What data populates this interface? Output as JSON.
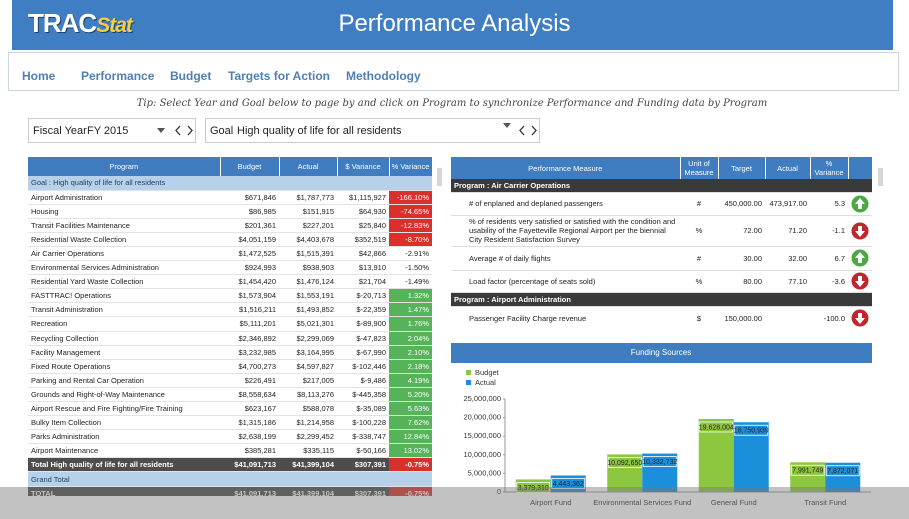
{
  "logo": {
    "text1": "TRAC",
    "text2": "Stat"
  },
  "header": {
    "title": "Performance Analysis"
  },
  "nav": [
    "Home",
    "Performance",
    "Budget",
    "Targets for Action",
    "Methodology"
  ],
  "tip": "Tip: Select Year and Goal below to page by and click on Program to synchronize Performance and Funding data by Program",
  "filters": {
    "year_label": "Fiscal Year",
    "year_value": "FY 2015",
    "goal_label": "Goal",
    "goal_value": "High quality of life for all residents"
  },
  "program_table": {
    "headers": [
      "Program",
      "Budget",
      "Actual",
      "$ Variance",
      "% Variance"
    ],
    "group": "Goal : High quality of life for all residents",
    "rows": [
      {
        "cells": [
          "Airport Administration",
          "$671,846",
          "$1,787,773",
          "$1,115,927",
          "-166.10%"
        ],
        "flag": "red"
      },
      {
        "cells": [
          "Housing",
          "$86,985",
          "$151,915",
          "$64,930",
          "-74.65%"
        ],
        "flag": "red"
      },
      {
        "cells": [
          "Transit Facilities Maintenance",
          "$201,361",
          "$227,201",
          "$25,840",
          "-12.83%"
        ],
        "flag": "red"
      },
      {
        "cells": [
          "Residential Waste Collection",
          "$4,051,159",
          "$4,403,678",
          "$352,519",
          "-8.70%"
        ],
        "flag": "red"
      },
      {
        "cells": [
          "Air Carrier Operations",
          "$1,472,525",
          "$1,515,391",
          "$42,866",
          "-2.91%"
        ]
      },
      {
        "cells": [
          "Environmental Services Administration",
          "$924,993",
          "$938,903",
          "$13,910",
          "-1.50%"
        ]
      },
      {
        "cells": [
          "Residential Yard Waste Collection",
          "$1,454,420",
          "$1,476,124",
          "$21,704",
          "-1.49%"
        ]
      },
      {
        "cells": [
          "FASTTRAC! Operations",
          "$1,573,904",
          "$1,553,191",
          "$-20,713",
          "1.32%"
        ],
        "flag": "green"
      },
      {
        "cells": [
          "Transit Administration",
          "$1,516,211",
          "$1,493,852",
          "$-22,359",
          "1.47%"
        ],
        "flag": "green"
      },
      {
        "cells": [
          "Recreation",
          "$5,111,201",
          "$5,021,301",
          "$-89,900",
          "1.76%"
        ],
        "flag": "green"
      },
      {
        "cells": [
          "Recycling Collection",
          "$2,346,892",
          "$2,299,069",
          "$-47,823",
          "2.04%"
        ],
        "flag": "green"
      },
      {
        "cells": [
          "Facility Management",
          "$3,232,985",
          "$3,164,995",
          "$-67,990",
          "2.10%"
        ],
        "flag": "green"
      },
      {
        "cells": [
          "Fixed Route Operations",
          "$4,700,273",
          "$4,597,827",
          "$-102,446",
          "2.18%"
        ],
        "flag": "green"
      },
      {
        "cells": [
          "Parking and Rental Car Operation",
          "$226,491",
          "$217,005",
          "$-9,486",
          "4.19%"
        ],
        "flag": "green"
      },
      {
        "cells": [
          "Grounds and Right-of-Way Maintenance",
          "$8,558,634",
          "$8,113,276",
          "$-445,358",
          "5.20%"
        ],
        "flag": "green"
      },
      {
        "cells": [
          "Airport Rescue and Fire Fighting/Fire Training",
          "$623,167",
          "$588,078",
          "$-35,089",
          "5.63%"
        ],
        "flag": "green"
      },
      {
        "cells": [
          "Bulky Item Collection",
          "$1,315,186",
          "$1,214,958",
          "$-100,228",
          "7.62%"
        ],
        "flag": "green"
      },
      {
        "cells": [
          "Parks Administration",
          "$2,638,199",
          "$2,299,452",
          "$-338,747",
          "12.84%"
        ],
        "flag": "green"
      },
      {
        "cells": [
          "Airport Maintenance",
          "$385,281",
          "$335,115",
          "$-50,166",
          "13.02%"
        ],
        "flag": "green"
      }
    ],
    "total": {
      "cells": [
        "Total High quality of life for all residents",
        "$41,091,713",
        "$41,399,104",
        "$307,391",
        "-0.75%"
      ],
      "flag": "red"
    },
    "grand_total_label": "Grand Total",
    "grand_total": {
      "cells": [
        "TOTAL",
        "$41,091,713",
        "$41,399,104",
        "$307,391",
        "-0.75%"
      ],
      "flag": "red"
    }
  },
  "measure_table": {
    "headers": [
      "Performance Measure",
      "Unit of Measure",
      "Target",
      "Actual",
      "% Variance"
    ],
    "groups": [
      {
        "label": "Program : Air Carrier Operations",
        "rows": [
          {
            "cells": [
              "# of enplaned and deplaned passengers",
              "#",
              "450,000.00",
              "473,917.00",
              "5.3"
            ],
            "trend": "up"
          },
          {
            "cells": [
              "% of residents very satisfied or satisfied with the condition and usability of the Fayetteville Regional Airport per the biennial City Resident Satisfaction Survey",
              "%",
              "72.00",
              "71.20",
              "-1.1"
            ],
            "trend": "down"
          },
          {
            "cells": [
              "Average # of daily flights",
              "#",
              "30.00",
              "32.00",
              "6.7"
            ],
            "trend": "up"
          },
          {
            "cells": [
              "Load factor (percentage of seats sold)",
              "%",
              "80.00",
              "77.10",
              "-3.6"
            ],
            "trend": "down"
          }
        ]
      },
      {
        "label": "Program : Airport Administration",
        "rows": [
          {
            "cells": [
              "Passenger Facility Charge revenue",
              "$",
              "150,000.00",
              null,
              "-100.0"
            ],
            "trend": "down"
          }
        ]
      }
    ]
  },
  "chart_data": {
    "type": "bar",
    "title": "Funding Sources",
    "categories": [
      "Airport Fund",
      "Environmental Services Fund",
      "General Fund",
      "Transit Fund"
    ],
    "series": [
      {
        "name": "Budget",
        "color": "#8dc63f",
        "values": [
          3379310,
          10092650,
          19628004,
          7991749
        ],
        "value_labels": [
          "3,379,310",
          "10,092,650",
          "19,628,004",
          "7,991,749"
        ]
      },
      {
        "name": "Actual",
        "color": "#1b8fd9",
        "values": [
          4443362,
          10332732,
          18750939,
          7872071
        ],
        "value_labels": [
          "4,443,362",
          "10,332,732",
          "18,750,939",
          "7,872,071"
        ]
      }
    ],
    "ylim": [
      0,
      25000000
    ],
    "yticks": [
      0,
      {
        "value": 5000000,
        "label": "5,000,000"
      },
      {
        "value": 10000000,
        "label": "10,000,000"
      },
      {
        "value": 15000000,
        "label": "15,000,000"
      },
      {
        "value": 20000000,
        "label": "20,000,000"
      },
      {
        "value": 25000000,
        "label": "25,000,000"
      }
    ],
    "legend": "top-left"
  }
}
